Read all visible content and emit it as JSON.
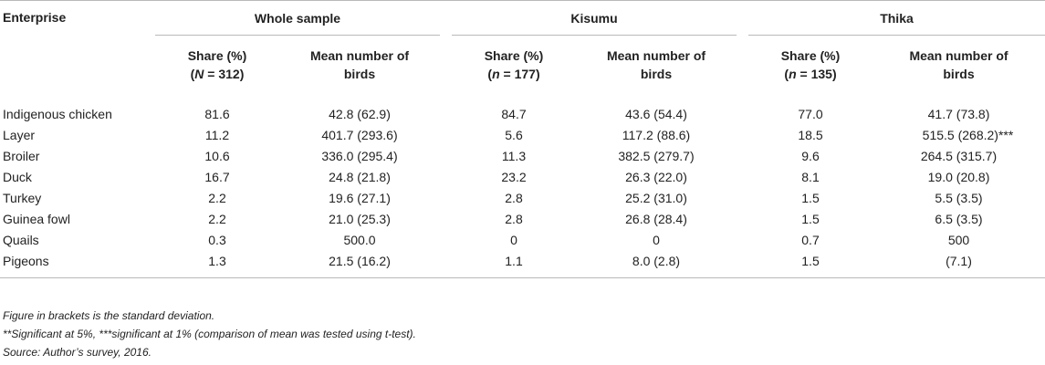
{
  "table": {
    "enterprise_header": "Enterprise",
    "groups": [
      {
        "label": "Whole sample",
        "share_label": "Share (%)",
        "n_symbol": "N",
        "n_value": "= 312)",
        "mean_label_1": "Mean number of",
        "mean_label_2": "birds"
      },
      {
        "label": "Kisumu",
        "share_label": "Share (%)",
        "n_symbol": "n",
        "n_value": "= 177)",
        "mean_label_1": "Mean number of",
        "mean_label_2": "birds"
      },
      {
        "label": "Thika",
        "share_label": "Share (%)",
        "n_symbol": "n",
        "n_value": "= 135)",
        "mean_label_1": "Mean number of",
        "mean_label_2": "birds"
      }
    ],
    "rows": [
      {
        "name": "Indigenous chicken",
        "ws_share": "81.6",
        "ws_mean": "42.8 (62.9)",
        "k_share": "84.7",
        "k_mean": "43.6 (54.4)",
        "t_share": "77.0",
        "t_mean": "41.7 (73.8)"
      },
      {
        "name": "Layer",
        "ws_share": "11.2",
        "ws_mean": "401.7 (293.6)",
        "k_share": "5.6",
        "k_mean": "117.2 (88.6)",
        "t_share": "18.5",
        "t_mean": "515.5 (268.2)***"
      },
      {
        "name": "Broiler",
        "ws_share": "10.6",
        "ws_mean": "336.0 (295.4)",
        "k_share": "11.3",
        "k_mean": "382.5 (279.7)",
        "t_share": "9.6",
        "t_mean": "264.5 (315.7)"
      },
      {
        "name": "Duck",
        "ws_share": "16.7",
        "ws_mean": "24.8 (21.8)",
        "k_share": "23.2",
        "k_mean": "26.3 (22.0)",
        "t_share": "8.1",
        "t_mean": "19.0 (20.8)"
      },
      {
        "name": "Turkey",
        "ws_share": "2.2",
        "ws_mean": "19.6 (27.1)",
        "k_share": "2.8",
        "k_mean": "25.2 (31.0)",
        "t_share": "1.5",
        "t_mean": "5.5 (3.5)"
      },
      {
        "name": "Guinea fowl",
        "ws_share": "2.2",
        "ws_mean": "21.0 (25.3)",
        "k_share": "2.8",
        "k_mean": "26.8 (28.4)",
        "t_share": "1.5",
        "t_mean": "6.5 (3.5)"
      },
      {
        "name": "Quails",
        "ws_share": "0.3",
        "ws_mean": "500.0",
        "k_share": "0",
        "k_mean": "0",
        "t_share": "0.7",
        "t_mean": "500"
      },
      {
        "name": "Pigeons",
        "ws_share": "1.3",
        "ws_mean": "21.5 (16.2)",
        "k_share": "1.1",
        "k_mean": "8.0 (2.8)",
        "t_share": "1.5",
        "t_mean": "(7.1)"
      }
    ]
  },
  "notes": {
    "line1": "Figure in brackets is the standard deviation.",
    "line2": "**Significant at 5%, ***significant at 1% (comparison of mean was tested using t-test).",
    "line3": "Source: Author’s survey, 2016."
  }
}
